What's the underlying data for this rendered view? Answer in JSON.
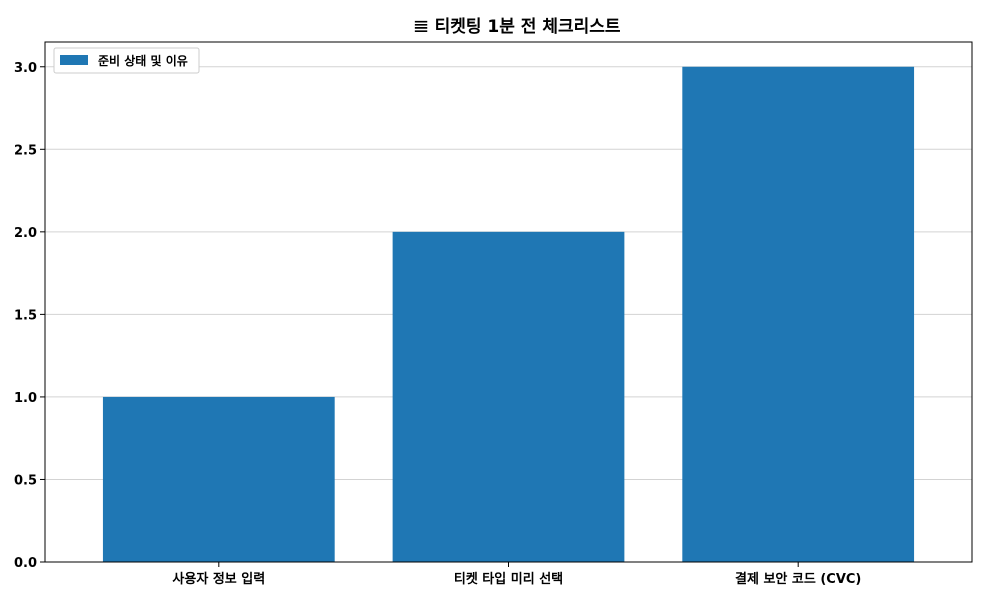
{
  "chart_data": {
    "type": "bar",
    "title": "𝌆 티켓팅 1분 전 체크리스트",
    "categories": [
      "사용자 정보 입력",
      "티켓 타입 미리 선택",
      "결제 보안 코드 (CVC)"
    ],
    "series": [
      {
        "name": "준비 상태 및 이유",
        "values": [
          1.0,
          2.0,
          3.0
        ]
      }
    ],
    "xlabel": "",
    "ylabel": "",
    "ylim": [
      0,
      3.15
    ],
    "yticks": [
      "0.0",
      "0.5",
      "1.0",
      "1.5",
      "2.0",
      "2.5",
      "3.0"
    ],
    "grid": "y",
    "legend_position": "top-left",
    "colors": {
      "bar": "#1f77b4",
      "grid": "#d3d3d3",
      "axis": "#000000"
    }
  }
}
